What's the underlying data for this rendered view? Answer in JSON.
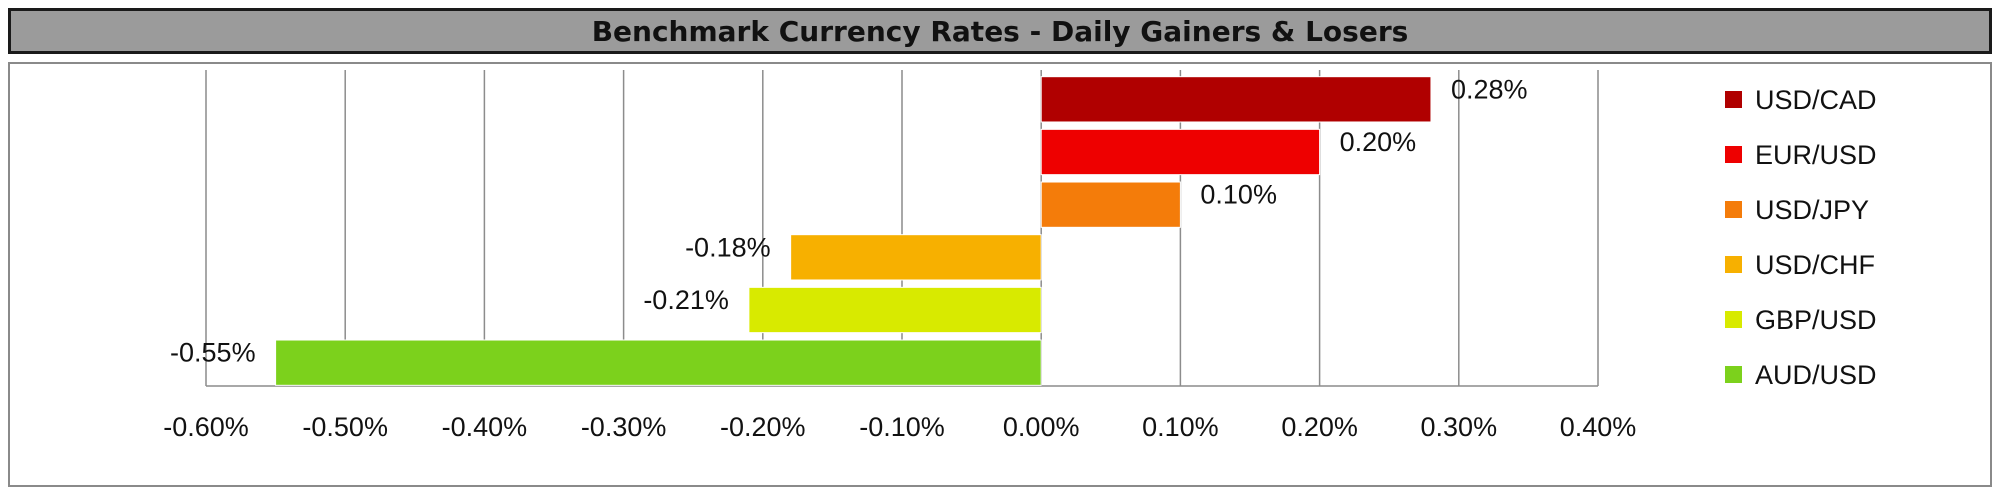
{
  "title": "Benchmark Currency Rates - Daily Gainers & Losers",
  "chart_data": {
    "type": "bar",
    "orientation": "horizontal",
    "title": "Benchmark Currency Rates - Daily Gainers & Losers",
    "categories": [
      "USD/CAD",
      "EUR/USD",
      "USD/JPY",
      "USD/CHF",
      "GBP/USD",
      "AUD/USD"
    ],
    "values": [
      0.28,
      0.2,
      0.1,
      -0.18,
      -0.21,
      -0.55
    ],
    "value_labels": [
      "0.28%",
      "0.20%",
      "0.10%",
      "-0.18%",
      "-0.21%",
      "-0.55%"
    ],
    "colors": [
      "#b00000",
      "#ee0000",
      "#f47c0a",
      "#f7b000",
      "#d8ea00",
      "#7cd11c"
    ],
    "xlim": [
      -0.6,
      0.4
    ],
    "xticks": [
      -0.6,
      -0.5,
      -0.4,
      -0.3,
      -0.2,
      -0.1,
      0.0,
      0.1,
      0.2,
      0.3,
      0.4
    ],
    "xtick_labels": [
      "-0.60%",
      "-0.50%",
      "-0.40%",
      "-0.30%",
      "-0.20%",
      "-0.10%",
      "0.00%",
      "0.10%",
      "0.20%",
      "0.30%",
      "0.40%"
    ],
    "grid": "vertical",
    "legend_position": "right",
    "legend": [
      "USD/CAD",
      "EUR/USD",
      "USD/JPY",
      "USD/CHF",
      "GBP/USD",
      "AUD/USD"
    ],
    "xlabel": "",
    "ylabel": ""
  }
}
